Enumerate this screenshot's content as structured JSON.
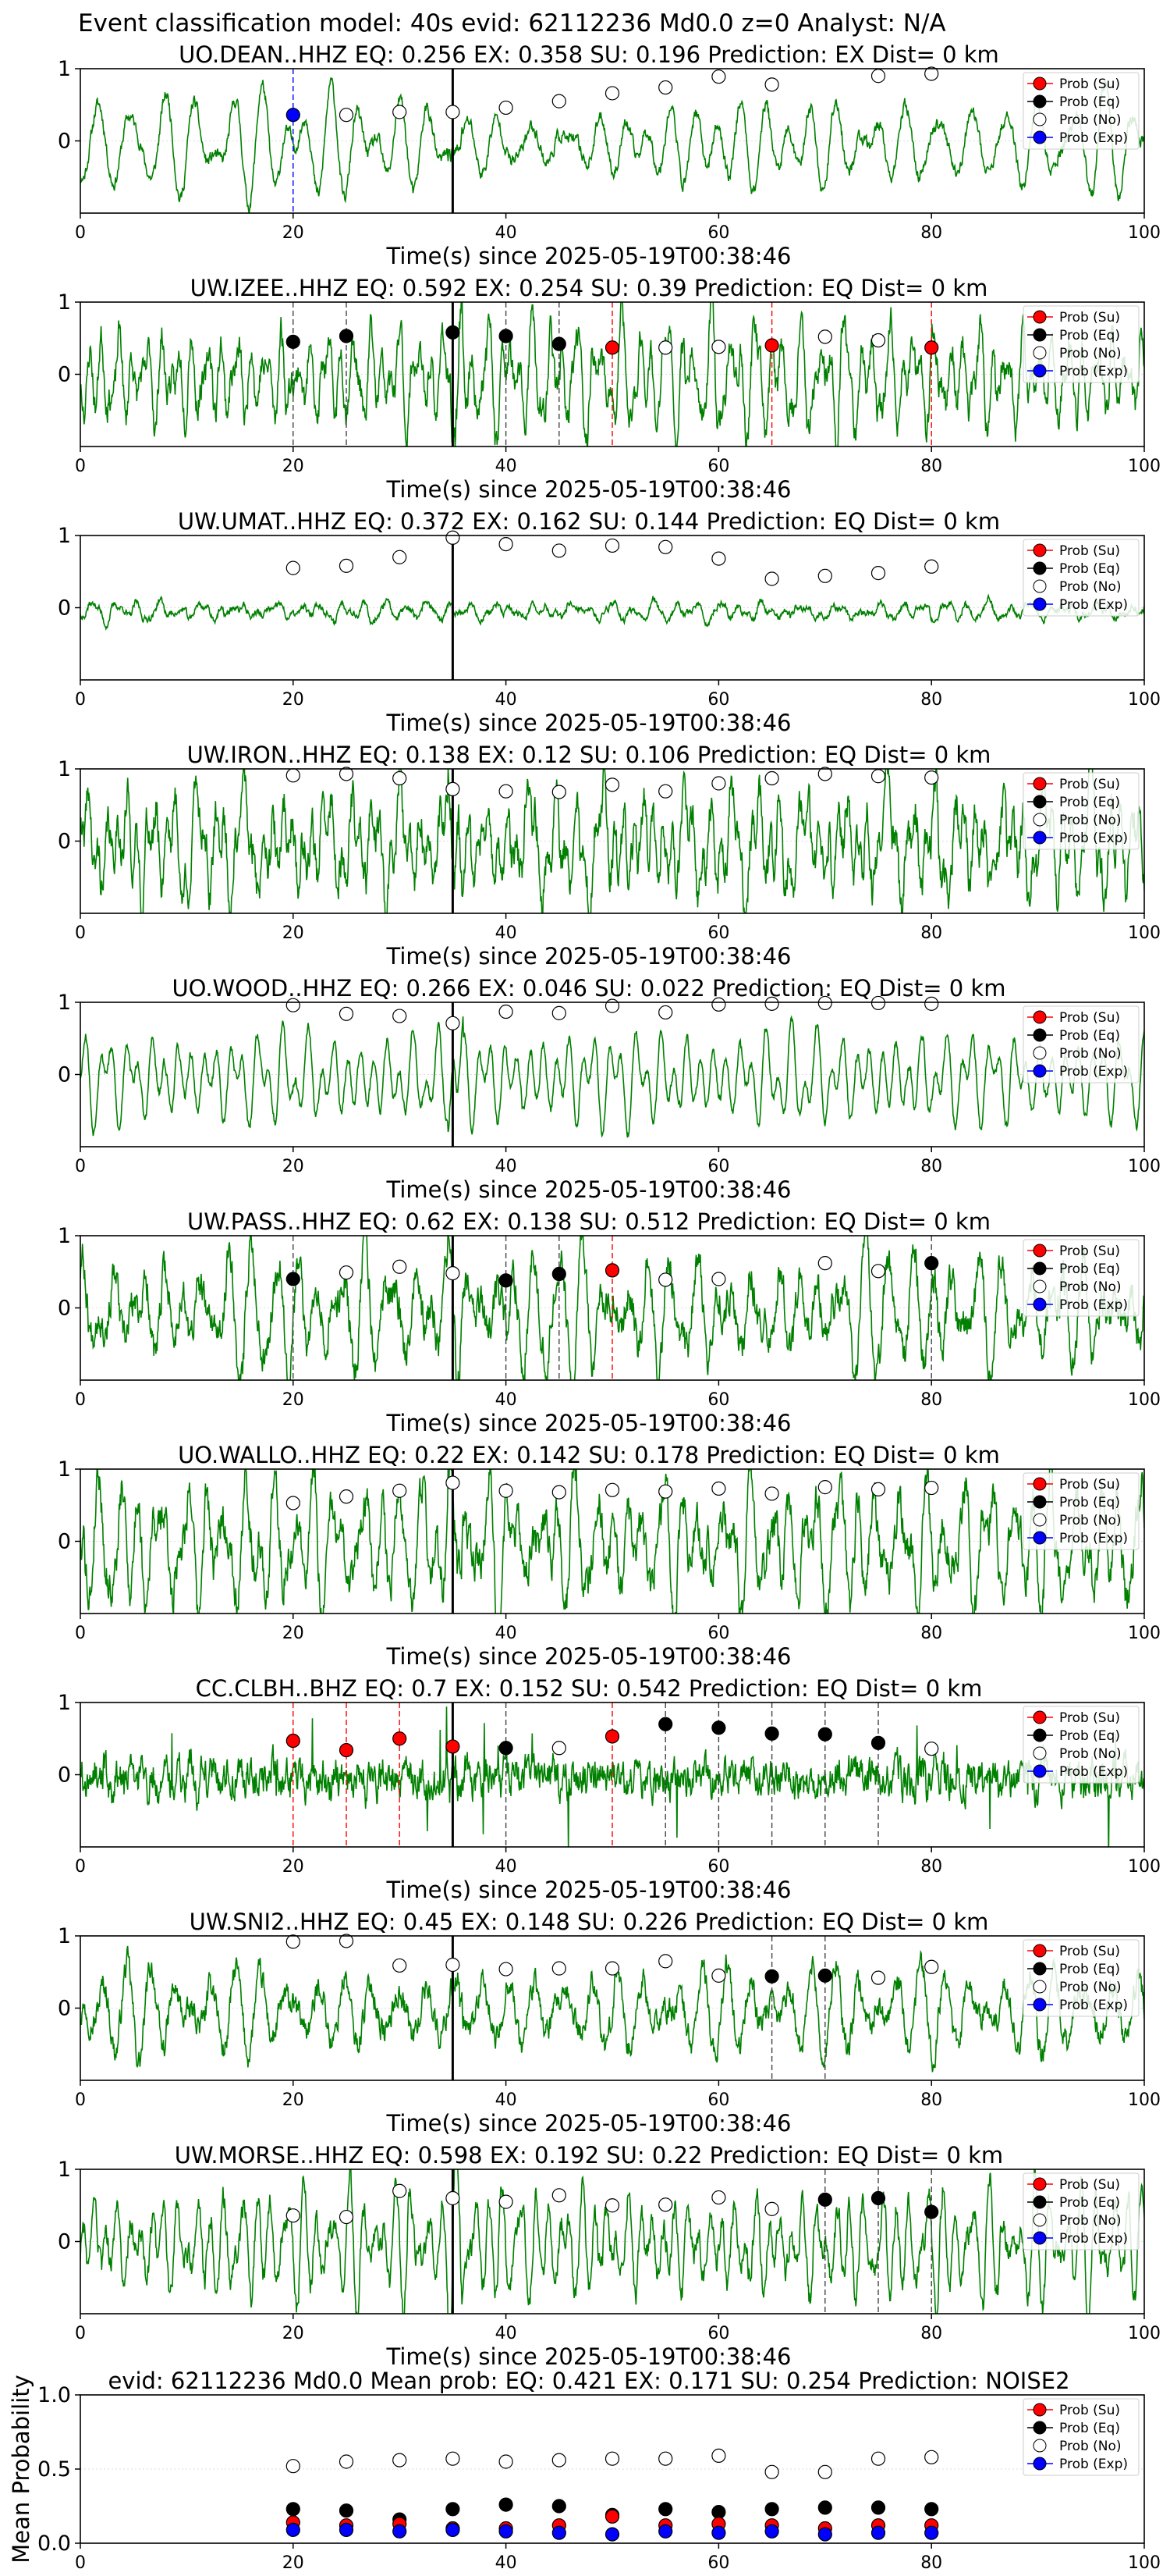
{
  "figure": {
    "suptitle": "Event classification model: 40s evid: 62112236 Md0.0 z=0 Analyst: N/A"
  },
  "legend_labels": [
    "Prob (Su)",
    "Prob (Eq)",
    "Prob (No)",
    "Prob (Exp)"
  ],
  "colors": {
    "waveform": "#008000",
    "su": "#ff0000",
    "eq": "#000000",
    "no": "#ffffff",
    "exp": "#0000ff"
  },
  "chart_data": [
    {
      "type": "line",
      "title": "UO.DEAN..HHZ   EQ: 0.256  EX: 0.358  SU: 0.196   Prediction: EX    Dist= 0 km",
      "xlabel": "Time(s) since 2025-05-19T00:38:46",
      "xlim": [
        0,
        100
      ],
      "ylim": [
        -1,
        1
      ],
      "xticks": [
        0,
        20,
        40,
        60,
        80,
        100
      ],
      "yticks": [
        0,
        1
      ],
      "onset_time": 35,
      "waveform": {
        "seed": 11,
        "character": "smooth",
        "noise": 0.15
      },
      "prob_no": [
        [
          25,
          0.36
        ],
        [
          30,
          0.4
        ],
        [
          35,
          0.4
        ],
        [
          40,
          0.46
        ],
        [
          45,
          0.55
        ],
        [
          50,
          0.66
        ],
        [
          55,
          0.74
        ],
        [
          60,
          0.89
        ],
        [
          65,
          0.78
        ],
        [
          75,
          0.9
        ],
        [
          80,
          0.93
        ]
      ],
      "prob_eq": [],
      "prob_su": [],
      "prob_exp": [
        [
          20,
          0.36
        ]
      ],
      "markers": [
        {
          "t": 20,
          "class": "exp"
        }
      ]
    },
    {
      "type": "line",
      "title": "UW.IZEE..HHZ   EQ: 0.592  EX: 0.254  SU: 0.39   Prediction: EQ    Dist= 0 km",
      "xlabel": "Time(s) since 2025-05-19T00:38:46",
      "xlim": [
        0,
        100
      ],
      "ylim": [
        -1,
        1
      ],
      "xticks": [
        0,
        20,
        40,
        60,
        80,
        100
      ],
      "yticks": [
        0,
        1
      ],
      "onset_time": 35,
      "waveform": {
        "seed": 23,
        "character": "noisy",
        "noise": 0.35
      },
      "prob_no": [
        [
          55,
          0.37
        ],
        [
          60,
          0.38
        ],
        [
          70,
          0.52
        ],
        [
          75,
          0.47
        ]
      ],
      "prob_eq": [
        [
          20,
          0.45
        ],
        [
          25,
          0.53
        ],
        [
          35,
          0.58
        ],
        [
          40,
          0.53
        ],
        [
          45,
          0.42
        ]
      ],
      "prob_su": [
        [
          50,
          0.37
        ],
        [
          65,
          0.4
        ],
        [
          80,
          0.37
        ]
      ],
      "prob_exp": [],
      "markers": [
        {
          "t": 20,
          "class": "eq"
        },
        {
          "t": 25,
          "class": "eq"
        },
        {
          "t": 40,
          "class": "eq"
        },
        {
          "t": 45,
          "class": "eq"
        },
        {
          "t": 50,
          "class": "su"
        },
        {
          "t": 65,
          "class": "su"
        },
        {
          "t": 80,
          "class": "su"
        }
      ]
    },
    {
      "type": "line",
      "title": "UW.UMAT..HHZ   EQ: 0.372  EX: 0.162  SU: 0.144   Prediction: EQ    Dist= 0 km",
      "xlabel": "Time(s) since 2025-05-19T00:38:46",
      "xlim": [
        0,
        100
      ],
      "ylim": [
        -1,
        1
      ],
      "xticks": [
        0,
        20,
        40,
        60,
        80,
        100
      ],
      "yticks": [
        0,
        1
      ],
      "onset_time": 35,
      "waveform": {
        "seed": 37,
        "character": "quiet",
        "noise": 0.08
      },
      "prob_no": [
        [
          20,
          0.55
        ],
        [
          25,
          0.58
        ],
        [
          30,
          0.7
        ],
        [
          35,
          0.97
        ],
        [
          40,
          0.88
        ],
        [
          45,
          0.79
        ],
        [
          50,
          0.86
        ],
        [
          55,
          0.84
        ],
        [
          60,
          0.68
        ],
        [
          65,
          0.4
        ],
        [
          70,
          0.44
        ],
        [
          75,
          0.48
        ],
        [
          80,
          0.57
        ]
      ],
      "prob_eq": [],
      "prob_su": [],
      "prob_exp": [],
      "markers": []
    },
    {
      "type": "line",
      "title": "UW.IRON..HHZ   EQ: 0.138  EX: 0.12  SU: 0.106   Prediction: EQ    Dist= 0 km",
      "xlabel": "Time(s) since 2025-05-19T00:38:46",
      "xlim": [
        0,
        100
      ],
      "ylim": [
        -1,
        1
      ],
      "xticks": [
        0,
        20,
        40,
        60,
        80,
        100
      ],
      "yticks": [
        0,
        1
      ],
      "onset_time": 35,
      "waveform": {
        "seed": 41,
        "character": "noisy",
        "noise": 0.45
      },
      "prob_no": [
        [
          20,
          0.91
        ],
        [
          25,
          0.93
        ],
        [
          30,
          0.87
        ],
        [
          35,
          0.72
        ],
        [
          40,
          0.69
        ],
        [
          45,
          0.68
        ],
        [
          50,
          0.78
        ],
        [
          55,
          0.69
        ],
        [
          60,
          0.8
        ],
        [
          65,
          0.87
        ],
        [
          70,
          0.93
        ],
        [
          75,
          0.9
        ],
        [
          80,
          0.88
        ]
      ],
      "prob_eq": [],
      "prob_su": [],
      "prob_exp": [],
      "markers": []
    },
    {
      "type": "line",
      "title": "UO.WOOD..HHZ   EQ: 0.266  EX: 0.046  SU: 0.022   Prediction: EQ    Dist= 0 km",
      "xlabel": "Time(s) since 2025-05-19T00:38:46",
      "xlim": [
        0,
        100
      ],
      "ylim": [
        -1,
        1
      ],
      "xticks": [
        0,
        20,
        40,
        60,
        80,
        100
      ],
      "yticks": [
        0,
        1
      ],
      "onset_time": 35,
      "waveform": {
        "seed": 53,
        "character": "smooth",
        "noise": 0.12
      },
      "prob_no": [
        [
          20,
          0.96
        ],
        [
          25,
          0.84
        ],
        [
          30,
          0.81
        ],
        [
          35,
          0.71
        ],
        [
          40,
          0.87
        ],
        [
          45,
          0.85
        ],
        [
          50,
          0.95
        ],
        [
          55,
          0.86
        ],
        [
          60,
          0.97
        ],
        [
          65,
          0.98
        ],
        [
          70,
          0.99
        ],
        [
          75,
          0.99
        ],
        [
          80,
          0.98
        ]
      ],
      "prob_eq": [],
      "prob_su": [],
      "prob_exp": [],
      "markers": []
    },
    {
      "type": "line",
      "title": "UW.PASS..HHZ   EQ: 0.62  EX: 0.138  SU: 0.512   Prediction: EQ    Dist= 0 km",
      "xlabel": "Time(s) since 2025-05-19T00:38:46",
      "xlim": [
        0,
        100
      ],
      "ylim": [
        -1,
        1
      ],
      "xticks": [
        0,
        20,
        40,
        60,
        80,
        100
      ],
      "yticks": [
        0,
        1
      ],
      "onset_time": 35,
      "waveform": {
        "seed": 67,
        "character": "noisy",
        "noise": 0.4
      },
      "prob_no": [
        [
          25,
          0.49
        ],
        [
          30,
          0.57
        ],
        [
          35,
          0.48
        ],
        [
          55,
          0.39
        ],
        [
          60,
          0.4
        ],
        [
          70,
          0.62
        ],
        [
          75,
          0.51
        ]
      ],
      "prob_eq": [
        [
          20,
          0.4
        ],
        [
          40,
          0.38
        ],
        [
          45,
          0.47
        ],
        [
          80,
          0.62
        ]
      ],
      "prob_su": [
        [
          50,
          0.52
        ]
      ],
      "prob_exp": [],
      "markers": [
        {
          "t": 20,
          "class": "eq"
        },
        {
          "t": 40,
          "class": "eq"
        },
        {
          "t": 45,
          "class": "eq"
        },
        {
          "t": 50,
          "class": "su"
        },
        {
          "t": 80,
          "class": "eq"
        }
      ]
    },
    {
      "type": "line",
      "title": "UO.WALLO..HHZ   EQ: 0.22  EX: 0.142  SU: 0.178   Prediction: EQ    Dist= 0 km",
      "xlabel": "Time(s) since 2025-05-19T00:38:46",
      "xlim": [
        0,
        100
      ],
      "ylim": [
        -1,
        1
      ],
      "xticks": [
        0,
        20,
        40,
        60,
        80,
        100
      ],
      "yticks": [
        0,
        1
      ],
      "onset_time": 35,
      "waveform": {
        "seed": 79,
        "character": "noisy",
        "noise": 0.45
      },
      "prob_no": [
        [
          20,
          0.53
        ],
        [
          25,
          0.62
        ],
        [
          30,
          0.7
        ],
        [
          35,
          0.81
        ],
        [
          40,
          0.7
        ],
        [
          45,
          0.68
        ],
        [
          50,
          0.71
        ],
        [
          55,
          0.69
        ],
        [
          60,
          0.73
        ],
        [
          65,
          0.66
        ],
        [
          70,
          0.75
        ],
        [
          75,
          0.72
        ],
        [
          80,
          0.74
        ]
      ],
      "prob_eq": [],
      "prob_su": [],
      "prob_exp": [],
      "markers": []
    },
    {
      "type": "line",
      "title": "CC.CLBH..BHZ   EQ: 0.7  EX: 0.152  SU: 0.542   Prediction: EQ    Dist= 0 km",
      "xlabel": "Time(s) since 2025-05-19T00:38:46",
      "xlim": [
        0,
        100
      ],
      "ylim": [
        -1,
        1
      ],
      "xticks": [
        0,
        20,
        40,
        60,
        80,
        100
      ],
      "yticks": [
        0,
        1
      ],
      "onset_time": 35,
      "waveform": {
        "seed": 89,
        "character": "spiky",
        "noise": 0.3
      },
      "prob_no": [
        [
          45,
          0.37
        ],
        [
          80,
          0.36
        ]
      ],
      "prob_eq": [
        [
          40,
          0.37
        ],
        [
          55,
          0.7
        ],
        [
          60,
          0.65
        ],
        [
          65,
          0.57
        ],
        [
          70,
          0.56
        ],
        [
          75,
          0.44
        ]
      ],
      "prob_su": [
        [
          20,
          0.47
        ],
        [
          25,
          0.34
        ],
        [
          30,
          0.5
        ],
        [
          35,
          0.39
        ],
        [
          50,
          0.53
        ]
      ],
      "prob_exp": [],
      "markers": [
        {
          "t": 20,
          "class": "su"
        },
        {
          "t": 25,
          "class": "su"
        },
        {
          "t": 30,
          "class": "su"
        },
        {
          "t": 40,
          "class": "eq"
        },
        {
          "t": 50,
          "class": "su"
        },
        {
          "t": 55,
          "class": "eq"
        },
        {
          "t": 60,
          "class": "eq"
        },
        {
          "t": 65,
          "class": "eq"
        },
        {
          "t": 70,
          "class": "eq"
        },
        {
          "t": 75,
          "class": "eq"
        }
      ]
    },
    {
      "type": "line",
      "title": "UW.SNI2..HHZ   EQ: 0.45  EX: 0.148  SU: 0.226   Prediction: EQ    Dist= 0 km",
      "xlabel": "Time(s) since 2025-05-19T00:38:46",
      "xlim": [
        0,
        100
      ],
      "ylim": [
        -1,
        1
      ],
      "xticks": [
        0,
        20,
        40,
        60,
        80,
        100
      ],
      "yticks": [
        0,
        1
      ],
      "onset_time": 35,
      "waveform": {
        "seed": 97,
        "character": "noisy",
        "noise": 0.3
      },
      "prob_no": [
        [
          20,
          0.92
        ],
        [
          25,
          0.93
        ],
        [
          30,
          0.59
        ],
        [
          35,
          0.6
        ],
        [
          40,
          0.54
        ],
        [
          45,
          0.55
        ],
        [
          50,
          0.55
        ],
        [
          55,
          0.65
        ],
        [
          60,
          0.45
        ],
        [
          75,
          0.42
        ],
        [
          80,
          0.57
        ]
      ],
      "prob_eq": [
        [
          65,
          0.44
        ],
        [
          70,
          0.45
        ]
      ],
      "prob_su": [],
      "prob_exp": [],
      "markers": [
        {
          "t": 65,
          "class": "eq"
        },
        {
          "t": 70,
          "class": "eq"
        }
      ]
    },
    {
      "type": "line",
      "title": "UW.MORSE..HHZ   EQ: 0.598  EX: 0.192  SU: 0.22   Prediction: EQ    Dist= 0 km",
      "xlabel": "Time(s) since 2025-05-19T00:38:46",
      "xlim": [
        0,
        100
      ],
      "ylim": [
        -1,
        1
      ],
      "xticks": [
        0,
        20,
        40,
        60,
        80,
        100
      ],
      "yticks": [
        0,
        1
      ],
      "onset_time": 35,
      "waveform": {
        "seed": 103,
        "character": "mixed",
        "noise": 0.3
      },
      "prob_no": [
        [
          20,
          0.36
        ],
        [
          25,
          0.34
        ],
        [
          30,
          0.7
        ],
        [
          35,
          0.6
        ],
        [
          40,
          0.55
        ],
        [
          45,
          0.64
        ],
        [
          50,
          0.5
        ],
        [
          55,
          0.51
        ],
        [
          60,
          0.61
        ],
        [
          65,
          0.45
        ]
      ],
      "prob_eq": [
        [
          70,
          0.58
        ],
        [
          75,
          0.6
        ],
        [
          80,
          0.41
        ]
      ],
      "prob_su": [],
      "prob_exp": [],
      "markers": [
        {
          "t": 70,
          "class": "eq"
        },
        {
          "t": 75,
          "class": "eq"
        },
        {
          "t": 80,
          "class": "eq"
        }
      ]
    },
    {
      "type": "scatter",
      "title": "evid: 62112236  Md0.0   Mean prob:   EQ: 0.421  EX: 0.171  SU: 0.254   Prediction: NOISE2",
      "ylabel": "Mean Probability",
      "xlim": [
        0,
        100
      ],
      "ylim": [
        0,
        1
      ],
      "xticks": [
        0,
        20,
        40,
        60,
        80,
        100
      ],
      "yticks": [
        0.0,
        0.5,
        1.0
      ],
      "prob_no": [
        [
          20,
          0.52
        ],
        [
          25,
          0.55
        ],
        [
          30,
          0.56
        ],
        [
          35,
          0.57
        ],
        [
          40,
          0.55
        ],
        [
          45,
          0.56
        ],
        [
          50,
          0.57
        ],
        [
          55,
          0.57
        ],
        [
          60,
          0.59
        ],
        [
          65,
          0.48
        ],
        [
          70,
          0.48
        ],
        [
          75,
          0.57
        ],
        [
          80,
          0.58
        ]
      ],
      "prob_eq": [
        [
          20,
          0.23
        ],
        [
          25,
          0.22
        ],
        [
          30,
          0.16
        ],
        [
          35,
          0.23
        ],
        [
          40,
          0.26
        ],
        [
          45,
          0.25
        ],
        [
          50,
          0.19
        ],
        [
          55,
          0.23
        ],
        [
          60,
          0.21
        ],
        [
          65,
          0.23
        ],
        [
          70,
          0.24
        ],
        [
          75,
          0.24
        ],
        [
          80,
          0.23
        ]
      ],
      "prob_su": [
        [
          20,
          0.14
        ],
        [
          25,
          0.12
        ],
        [
          30,
          0.13
        ],
        [
          35,
          0.1
        ],
        [
          40,
          0.1
        ],
        [
          45,
          0.12
        ],
        [
          50,
          0.18
        ],
        [
          55,
          0.12
        ],
        [
          60,
          0.13
        ],
        [
          65,
          0.12
        ],
        [
          70,
          0.1
        ],
        [
          75,
          0.12
        ],
        [
          80,
          0.12
        ]
      ],
      "prob_exp": [
        [
          20,
          0.09
        ],
        [
          25,
          0.09
        ],
        [
          30,
          0.08
        ],
        [
          35,
          0.09
        ],
        [
          40,
          0.08
        ],
        [
          45,
          0.07
        ],
        [
          50,
          0.06
        ],
        [
          55,
          0.08
        ],
        [
          60,
          0.07
        ],
        [
          65,
          0.08
        ],
        [
          70,
          0.06
        ],
        [
          75,
          0.07
        ],
        [
          80,
          0.07
        ]
      ]
    }
  ]
}
